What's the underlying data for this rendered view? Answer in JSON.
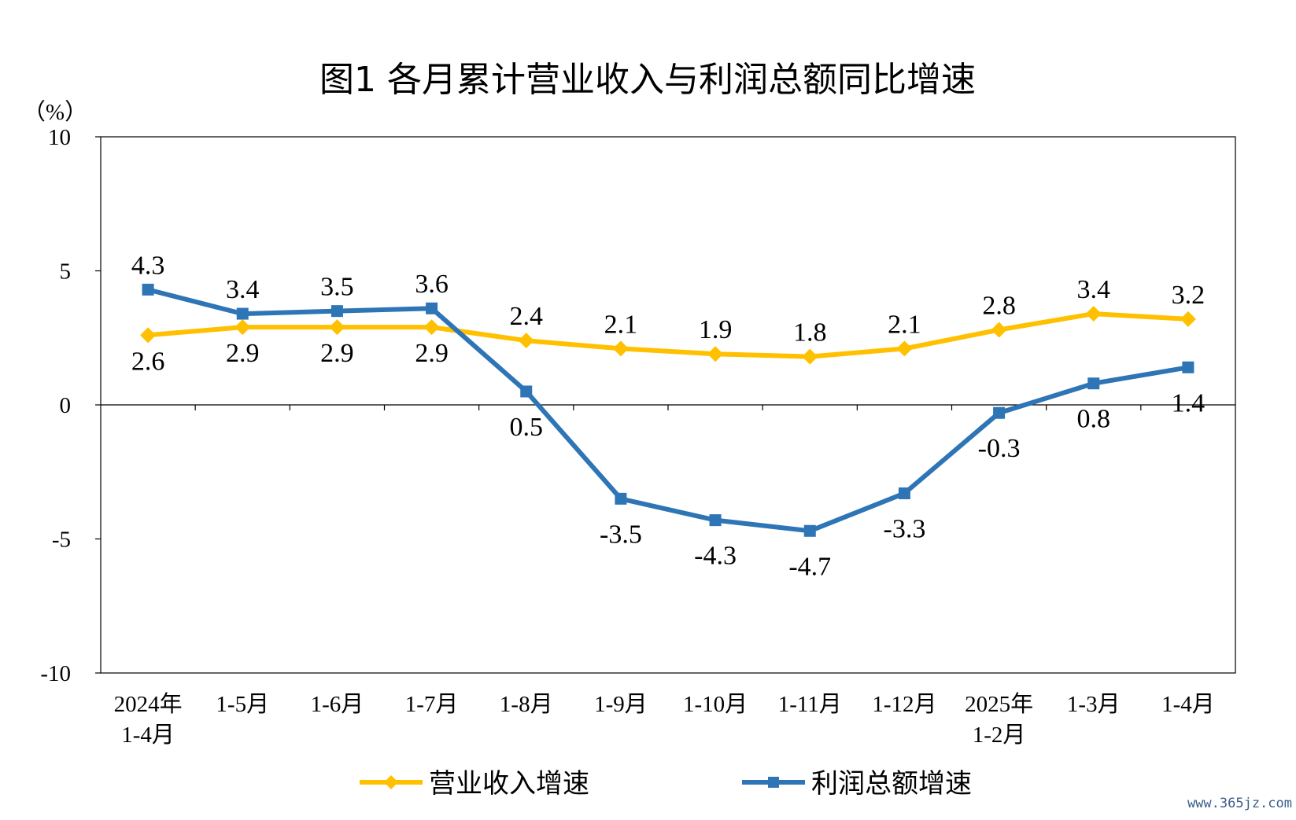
{
  "chart_data": {
    "type": "line",
    "title": "图1  各月累计营业收入与利润总额同比增速",
    "ylabel": "（%）",
    "xlabel": "",
    "ylim": [
      -10,
      10
    ],
    "yticks": [
      "10",
      "5",
      "0",
      "-5",
      "-10"
    ],
    "grid": false,
    "legend_position": "bottom",
    "categories": [
      [
        "2024年",
        "1-4月"
      ],
      [
        "1-5月"
      ],
      [
        "1-6月"
      ],
      [
        "1-7月"
      ],
      [
        "1-8月"
      ],
      [
        "1-9月"
      ],
      [
        "1-10月"
      ],
      [
        "1-11月"
      ],
      [
        "1-12月"
      ],
      [
        "2025年",
        "1-2月"
      ],
      [
        "1-3月"
      ],
      [
        "1-4月"
      ]
    ],
    "series": [
      {
        "name": "营业收入增速",
        "color": "#FFC000",
        "marker": "diamond",
        "values": [
          2.6,
          2.9,
          2.9,
          2.9,
          2.4,
          2.1,
          1.9,
          1.8,
          2.1,
          2.8,
          3.4,
          3.2
        ],
        "labels": [
          "2.6",
          "2.9",
          "2.9",
          "2.9",
          "2.4",
          "2.1",
          "1.9",
          "1.8",
          "2.1",
          "2.8",
          "3.4",
          "3.2"
        ]
      },
      {
        "name": "利润总额增速",
        "color": "#2E75B6",
        "marker": "square",
        "values": [
          4.3,
          3.4,
          3.5,
          3.6,
          0.5,
          -3.5,
          -4.3,
          -4.7,
          -3.3,
          -0.3,
          0.8,
          1.4
        ],
        "labels": [
          "4.3",
          "3.4",
          "3.5",
          "3.6",
          "0.5",
          "-3.5",
          "-4.3",
          "-4.7",
          "-3.3",
          "-0.3",
          "0.8",
          "1.4"
        ]
      }
    ]
  },
  "watermark": "www.365jz.com"
}
